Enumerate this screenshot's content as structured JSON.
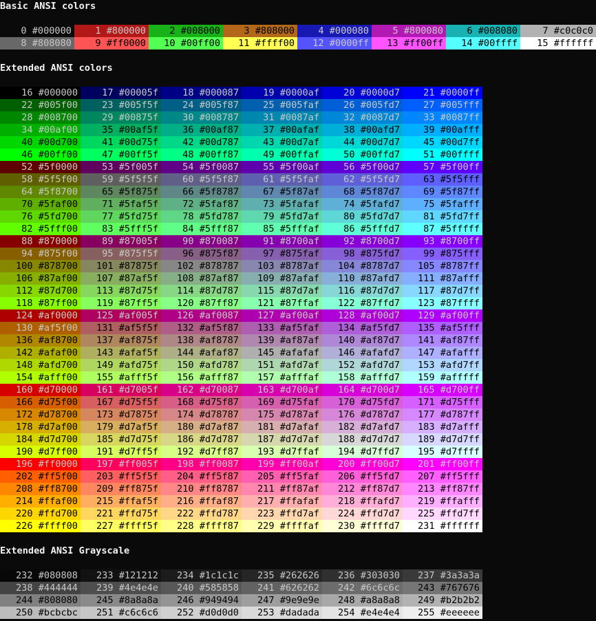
{
  "headings": {
    "basic": "Basic ANSI colors",
    "extended": "Extended ANSI colors",
    "grayscale": "Extended ANSI Grayscale"
  },
  "basic": [
    {
      "n": 0,
      "hex": "#000000"
    },
    {
      "n": 1,
      "hex": "#800000"
    },
    {
      "n": 2,
      "hex": "#008000"
    },
    {
      "n": 3,
      "hex": "#808000"
    },
    {
      "n": 4,
      "hex": "#000080"
    },
    {
      "n": 5,
      "hex": "#800080"
    },
    {
      "n": 6,
      "hex": "#008080"
    },
    {
      "n": 7,
      "hex": "#c0c0c0"
    },
    {
      "n": 8,
      "hex": "#808080"
    },
    {
      "n": 9,
      "hex": "#ff0000"
    },
    {
      "n": 10,
      "hex": "#00ff00"
    },
    {
      "n": 11,
      "hex": "#ffff00"
    },
    {
      "n": 12,
      "hex": "#0000ff"
    },
    {
      "n": 13,
      "hex": "#ff00ff"
    },
    {
      "n": 14,
      "hex": "#00ffff"
    },
    {
      "n": 15,
      "hex": "#ffffff"
    }
  ],
  "basic_display_colors": {
    "0": "#0a0a0a",
    "1": "#b21818",
    "2": "#18b218",
    "3": "#b26818",
    "4": "#1818b2",
    "5": "#b218b2",
    "6": "#18b2b2",
    "7": "#b2b2b2",
    "8": "#686868",
    "9": "#ff5454",
    "10": "#54ff54",
    "11": "#ffff54",
    "12": "#5454ff",
    "13": "#ff54ff",
    "14": "#54ffff",
    "15": "#ffffff"
  },
  "cube_levels": [
    "00",
    "5f",
    "87",
    "af",
    "d7",
    "ff"
  ],
  "grayscale": [
    {
      "n": 232,
      "hex": "#080808"
    },
    {
      "n": 233,
      "hex": "#121212"
    },
    {
      "n": 234,
      "hex": "#1c1c1c"
    },
    {
      "n": 235,
      "hex": "#262626"
    },
    {
      "n": 236,
      "hex": "#303030"
    },
    {
      "n": 237,
      "hex": "#3a3a3a"
    },
    {
      "n": 238,
      "hex": "#444444"
    },
    {
      "n": 239,
      "hex": "#4e4e4e"
    },
    {
      "n": 240,
      "hex": "#585858"
    },
    {
      "n": 241,
      "hex": "#626262"
    },
    {
      "n": 242,
      "hex": "#6c6c6c"
    },
    {
      "n": 243,
      "hex": "#767676"
    },
    {
      "n": 244,
      "hex": "#808080"
    },
    {
      "n": 245,
      "hex": "#8a8a8a"
    },
    {
      "n": 246,
      "hex": "#949494"
    },
    {
      "n": 247,
      "hex": "#9e9e9e"
    },
    {
      "n": 248,
      "hex": "#a8a8a8"
    },
    {
      "n": 249,
      "hex": "#b2b2b2"
    },
    {
      "n": 250,
      "hex": "#bcbcbc"
    },
    {
      "n": 251,
      "hex": "#c6c6c6"
    },
    {
      "n": 252,
      "hex": "#d0d0d0"
    },
    {
      "n": 253,
      "hex": "#dadada"
    },
    {
      "n": 254,
      "hex": "#e4e4e4"
    },
    {
      "n": 255,
      "hex": "#eeeeee"
    }
  ]
}
